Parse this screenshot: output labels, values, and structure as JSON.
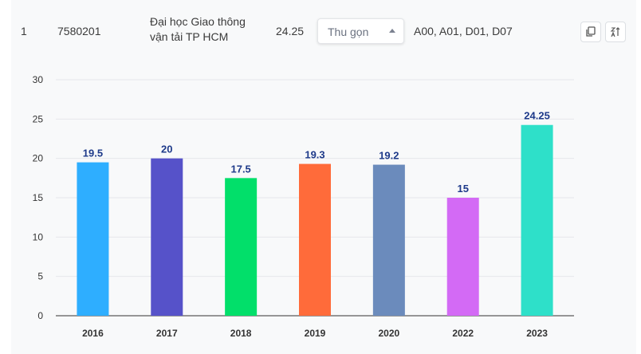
{
  "row": {
    "index": "1",
    "code": "7580201",
    "school_name": "Đại học Giao thông vận tải TP HCM",
    "score": "24.25",
    "collapse_label": "Thu gọn",
    "blocks": "A00, A01, D01, D07",
    "icons": {
      "copy": "copy-icon",
      "sort": "sort-az-icon"
    }
  },
  "chart_data": {
    "type": "bar",
    "categories": [
      "2016",
      "2017",
      "2018",
      "2019",
      "2020",
      "2022",
      "2023"
    ],
    "values": [
      19.5,
      20,
      17.5,
      19.3,
      19.2,
      15,
      24.25
    ],
    "labels": [
      "19.5",
      "20",
      "17.5",
      "19.3",
      "19.2",
      "15",
      "24.25"
    ],
    "colors": [
      "#2eaeff",
      "#5652c9",
      "#02df6a",
      "#ff6b3a",
      "#6b8bbc",
      "#d36af5",
      "#2ee0c9"
    ],
    "ylim": [
      0,
      30
    ],
    "yticks": [
      0,
      5,
      10,
      15,
      20,
      25,
      30
    ],
    "grid": true,
    "title": "",
    "xlabel": "",
    "ylabel": ""
  }
}
